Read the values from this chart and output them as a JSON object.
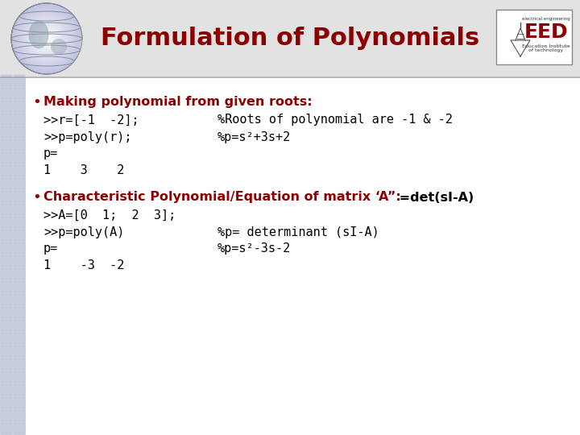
{
  "title": "Formulation of Polynomials",
  "title_color": "#8B0000",
  "title_fontsize": 22,
  "title_fontweight": "bold",
  "bg_color": "#FFFFFF",
  "header_bg": "#E0E0E0",
  "separator_color": "#AAAAAA",
  "bullet_color": "#8B0000",
  "code_color": "#000000",
  "grid_color": "#D8DCE8",
  "left_col_color": "#D0D4E0",
  "globe_base": "#C8CED8",
  "globe_line": "#8090A0",
  "bullet1_text": "Making polynomial from given roots:",
  "bullet2_colored": "Characteristic Polynomial/Equation of matrix ‘A”:",
  "bullet2_black": " =det(sI-A)",
  "lines1_left": [
    ">>r=[-1  -2];",
    ">>p=poly(r);",
    "p=",
    "1    3    2"
  ],
  "lines1_right": [
    "%Roots of polynomial are -1 & -2",
    "%p=s²+3s+2",
    "",
    ""
  ],
  "lines2_left": [
    ">>A=[0  1;  2  3];",
    ">>p=poly(A)",
    "p=",
    "1    -3  -2"
  ],
  "lines2_right": [
    "",
    "%p= determinant (sI-A)",
    "%p=s²-3s-2",
    ""
  ],
  "eed_color": "#8B0000",
  "eed_bg": "#FFFFFF",
  "eed_border": "#888888"
}
